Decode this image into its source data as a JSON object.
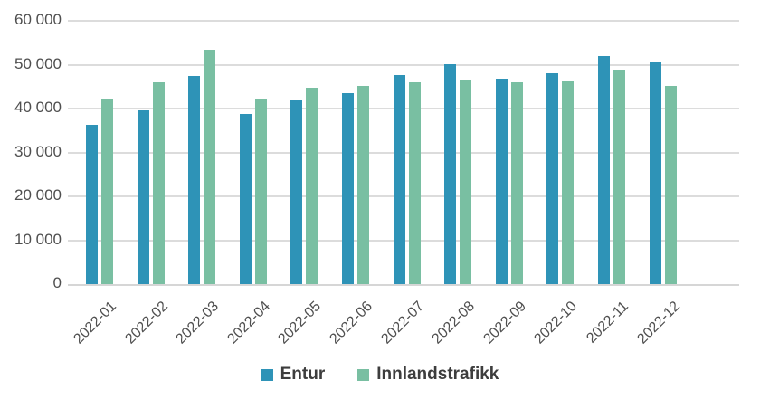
{
  "chart_data": {
    "type": "bar",
    "title": "",
    "xlabel": "",
    "ylabel": "",
    "categories": [
      "2022-01",
      "2022-02",
      "2022-03",
      "2022-04",
      "2022-05",
      "2022-06",
      "2022-07",
      "2022-08",
      "2022-09",
      "2022-10",
      "2022-11",
      "2022-12"
    ],
    "series": [
      {
        "name": "Entur",
        "color": "#2e93b7",
        "values": [
          36200,
          39600,
          47400,
          38700,
          41900,
          43600,
          47700,
          50200,
          46800,
          48100,
          51900,
          50700
        ]
      },
      {
        "name": "Innlandstrafikk",
        "color": "#79bfa2",
        "values": [
          42300,
          46000,
          53500,
          42300,
          44700,
          45100,
          46000,
          46500,
          46000,
          46200,
          48900,
          45200
        ]
      }
    ],
    "ylim": [
      0,
      60000
    ],
    "ytick_step": 10000,
    "ytick_labels": [
      "0",
      "10 000",
      "20 000",
      "30 000",
      "40 000",
      "50 000",
      "60 000"
    ],
    "grid": true,
    "legend_position": "bottom",
    "colors": {
      "grid": "#dcdcdc",
      "axis_text": "#4f4f4f",
      "legend_text": "#3d3d3d",
      "background": "#ffffff"
    }
  }
}
